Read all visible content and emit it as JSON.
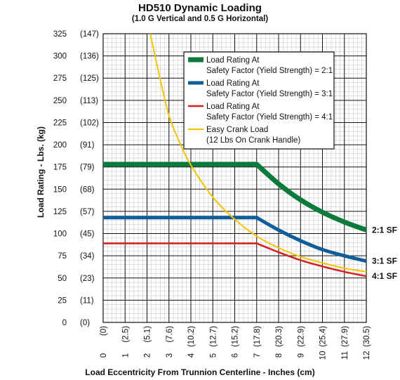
{
  "title": "HD510 Dynamic Loading",
  "subtitle": "(1.0 G Vertical and 0.5 G Horizontal)",
  "ylabel": "Load Rating - Lbs. (kg)",
  "xlabel": "Load Eccentricity From Trunnion Centerline - Inches (cm)",
  "chart_data": {
    "type": "line",
    "title": "HD510 Dynamic Loading",
    "subtitle": "(1.0 G Vertical and 0.5 G Horizontal)",
    "xlabel": "Load Eccentricity From Trunnion Centerline - Inches (cm)",
    "ylabel": "Load Rating - Lbs. (kg)",
    "xlim": [
      0,
      12
    ],
    "ylim": [
      0,
      325
    ],
    "grid": true,
    "legend_position": "top-right",
    "x_ticks": [
      "0",
      "1",
      "2",
      "3",
      "4",
      "5",
      "6",
      "7",
      "8",
      "9",
      "10",
      "11",
      "12"
    ],
    "x_ticks_cm": [
      "(0)",
      "(2.5)",
      "(5.1)",
      "(7.6)",
      "(10.2)",
      "(12.7)",
      "(15.2)",
      "(17.8)",
      "(20.3)",
      "(22.9)",
      "(25.4)",
      "(27.9)",
      "(30.5)"
    ],
    "y_ticks": [
      "0",
      "25",
      "50",
      "75",
      "100",
      "125",
      "150",
      "175",
      "200",
      "225",
      "250",
      "275",
      "300",
      "325"
    ],
    "y_ticks_kg": [
      "(0)",
      "(11)",
      "(23)",
      "(34)",
      "(45)",
      "(57)",
      "(68)",
      "(79)",
      "(91)",
      "(102)",
      "(113)",
      "(125)",
      "(136)",
      "(147)"
    ],
    "series": [
      {
        "name": "Load Rating At\nSafety Factor (Yield Strength) = 2:1",
        "color": "#0b7a3a",
        "end_label": "2:1 SF",
        "x": [
          0,
          7,
          8,
          9,
          10,
          11,
          12
        ],
        "y": [
          178,
          178,
          156,
          138,
          124,
          113,
          104
        ]
      },
      {
        "name": "Load Rating At\nSafety Factor (Yield Strength) = 3:1",
        "color": "#0f5e99",
        "end_label": "3:1 SF",
        "x": [
          0,
          7,
          8,
          9,
          10,
          11,
          12
        ],
        "y": [
          118,
          118,
          104,
          92,
          82,
          75,
          69
        ]
      },
      {
        "name": "Load Rating At\nSafety Factor (Yield Strength) = 4:1",
        "color": "#d4201f",
        "end_label": "4:1 SF",
        "x": [
          0,
          7,
          8,
          9,
          10,
          11,
          12
        ],
        "y": [
          89,
          89,
          79,
          70,
          63,
          57,
          52
        ]
      },
      {
        "name": "Easy Crank Load\n(12 Lbs On Crank Handle)",
        "color": "#f5c400",
        "x": [
          2.15,
          2.5,
          3,
          3.5,
          4,
          5,
          6,
          7,
          8,
          9,
          10,
          11,
          12
        ],
        "y": [
          325,
          285,
          233,
          202,
          177,
          141,
          116,
          97,
          84,
          74,
          67,
          61,
          57
        ]
      }
    ]
  }
}
